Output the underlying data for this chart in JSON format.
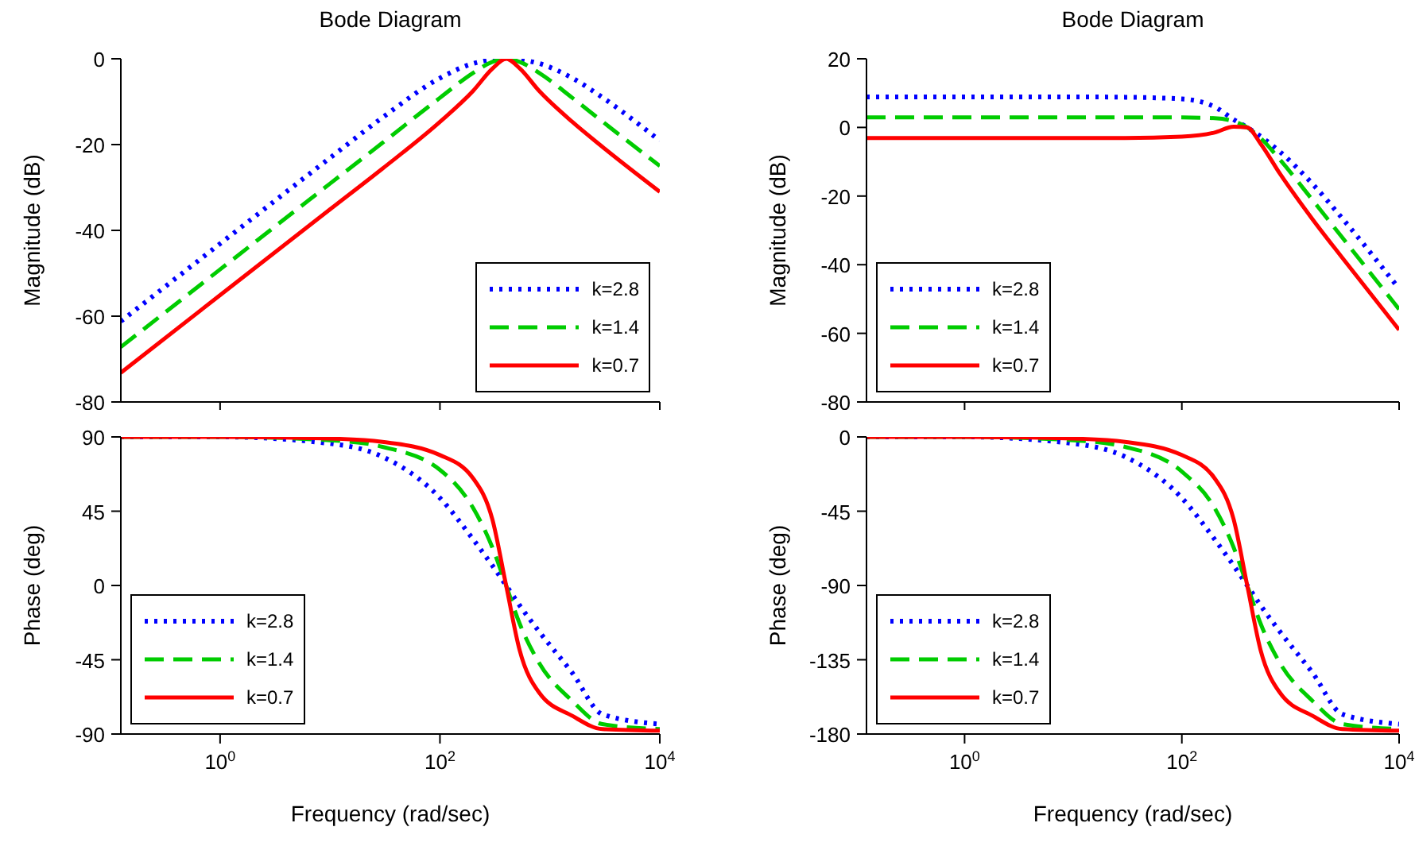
{
  "chart_data": [
    {
      "type": "line",
      "title": "Bode Diagram",
      "ylabel": "Magnitude (dB)",
      "log": "x",
      "tick_labels": "y",
      "legend": "bottom right",
      "marker": "none",
      "grid": false,
      "xlim": [
        0.125,
        10000
      ],
      "xticks": [
        {
          "value": 1,
          "label": null
        },
        {
          "value": 100,
          "label": null
        },
        {
          "value": 10000,
          "label": null
        }
      ],
      "ylim": [
        -80,
        0
      ],
      "yticks": [
        -80,
        -60,
        -40,
        -20,
        0
      ],
      "series": [
        {
          "name": "k=2.8",
          "color": "#0000ff",
          "line_style": "dotted",
          "x": [
            0.125,
            1,
            10,
            30,
            100,
            200,
            300,
            400,
            530,
            800,
            1600,
            3000,
            10000
          ],
          "values": [
            -61.2,
            -43.1,
            -23.1,
            -13.7,
            -4.5,
            -1.1,
            -0.2,
            0,
            -0.2,
            -1.1,
            -4.5,
            -9,
            -19.1
          ]
        },
        {
          "name": "k=1.4",
          "color": "#00cc00",
          "line_style": "dashed",
          "x": [
            0.125,
            1,
            10,
            30,
            100,
            200,
            300,
            400,
            530,
            800,
            1600,
            3000,
            10000
          ],
          "values": [
            -67.2,
            -49.1,
            -29.1,
            -19.6,
            -9.1,
            -3.3,
            -0.7,
            0,
            -0.7,
            -3.3,
            -9.1,
            -14.6,
            -25
          ]
        },
        {
          "name": "k=0.7",
          "color": "#ff0000",
          "line_style": "solid",
          "x": [
            0.125,
            1,
            10,
            30,
            100,
            200,
            300,
            400,
            530,
            800,
            1600,
            3000,
            10000
          ],
          "values": [
            -73.2,
            -55.1,
            -35.1,
            -25.6,
            -14.7,
            -7.5,
            -2.3,
            0,
            -2.2,
            -7.5,
            -14.7,
            -20.5,
            -31
          ]
        }
      ]
    },
    {
      "type": "line",
      "title": "Bode Diagram",
      "ylabel": "Magnitude (dB)",
      "log": "x",
      "tick_labels": "y",
      "legend": "bottom left",
      "marker": "none",
      "grid": false,
      "xlim": [
        0.125,
        10000
      ],
      "xticks": [
        {
          "value": 1,
          "label": null
        },
        {
          "value": 100,
          "label": null
        },
        {
          "value": 10000,
          "label": null
        }
      ],
      "ylim": [
        -80,
        20
      ],
      "yticks": [
        -80,
        -60,
        -40,
        -20,
        0,
        20
      ],
      "series": [
        {
          "name": "k=2.8",
          "color": "#0000ff",
          "line_style": "dotted",
          "x": [
            0.125,
            1,
            10,
            30,
            100,
            200,
            300,
            400,
            530,
            800,
            1600,
            3000,
            10000
          ],
          "values": [
            8.9,
            8.9,
            8.9,
            8.8,
            8.3,
            6,
            2.3,
            0,
            -2.6,
            -7.1,
            -16.5,
            -26.5,
            -47
          ]
        },
        {
          "name": "k=1.4",
          "color": "#00cc00",
          "line_style": "dashed",
          "x": [
            0.125,
            1,
            10,
            30,
            100,
            200,
            300,
            400,
            530,
            800,
            1600,
            3000,
            10000
          ],
          "values": [
            2.9,
            2.9,
            2.9,
            2.9,
            2.9,
            2.7,
            1.8,
            0,
            -3.1,
            -9.4,
            -21.2,
            -32.1,
            -53
          ]
        },
        {
          "name": "k=0.7",
          "color": "#ff0000",
          "line_style": "solid",
          "x": [
            0.125,
            1,
            10,
            30,
            100,
            200,
            300,
            400,
            530,
            800,
            1600,
            3000,
            10000
          ],
          "values": [
            -3.1,
            -3.1,
            -3.1,
            -3.1,
            -2.7,
            -1.5,
            0.2,
            0,
            -4.7,
            -13.5,
            -26.8,
            -38,
            -59
          ]
        }
      ]
    },
    {
      "type": "line",
      "xlabel": "Frequency  (rad/sec)",
      "ylabel": "Phase (deg)",
      "log": "x",
      "legend": "bottom left",
      "marker": "none",
      "grid": false,
      "xlim": [
        0.125,
        10000
      ],
      "xticks": [
        {
          "value": 1,
          "label": "10$^{0}$"
        },
        {
          "value": 100,
          "label": "10$^{2}$"
        },
        {
          "value": 10000,
          "label": "10$^{4}$"
        }
      ],
      "ylim": [
        -90,
        90
      ],
      "yticks": [
        -90,
        -45,
        0,
        45,
        90
      ],
      "series": [
        {
          "name": "k=2.8",
          "color": "#0000ff",
          "line_style": "dotted",
          "x": [
            0.125,
            1,
            10,
            30,
            100,
            200,
            300,
            400,
            530,
            800,
            1600,
            3000,
            10000
          ],
          "values": [
            90,
            90,
            86,
            78,
            53,
            28,
            12,
            0,
            -12,
            -28,
            -53,
            -78,
            -84
          ]
        },
        {
          "name": "k=1.4",
          "color": "#00cc00",
          "line_style": "dashed",
          "x": [
            0.125,
            1,
            10,
            30,
            100,
            200,
            300,
            400,
            530,
            800,
            1600,
            3000,
            10000
          ],
          "values": [
            90,
            90,
            88,
            84,
            70,
            47,
            23,
            0,
            -23,
            -47,
            -70,
            -84,
            -87
          ]
        },
        {
          "name": "k=0.7",
          "color": "#ff0000",
          "line_style": "solid",
          "x": [
            0.125,
            1,
            10,
            30,
            100,
            200,
            300,
            400,
            530,
            800,
            1600,
            3000,
            10000
          ],
          "values": [
            90,
            90,
            89,
            87,
            79,
            65,
            40,
            0,
            -39,
            -65,
            -79,
            -87,
            -88
          ]
        }
      ]
    },
    {
      "type": "line",
      "xlabel": "Frequency  (rad/sec)",
      "ylabel": "Phase (deg)",
      "log": "x",
      "legend": "bottom left",
      "marker": "none",
      "grid": false,
      "xlim": [
        0.125,
        10000
      ],
      "xticks": [
        {
          "value": 1,
          "label": "10$^{0}$"
        },
        {
          "value": 100,
          "label": "10$^{2}$"
        },
        {
          "value": 10000,
          "label": "10$^{4}$"
        }
      ],
      "ylim": [
        -180,
        0
      ],
      "yticks": [
        -180,
        -135,
        -90,
        -45,
        0
      ],
      "series": [
        {
          "name": "k=2.8",
          "color": "#0000ff",
          "line_style": "dotted",
          "x": [
            0.125,
            1,
            10,
            30,
            100,
            200,
            300,
            400,
            530,
            800,
            1600,
            3000,
            10000
          ],
          "values": [
            0,
            0,
            -4,
            -12,
            -37,
            -62,
            -78,
            -90,
            -102,
            -118,
            -143,
            -168,
            -174
          ]
        },
        {
          "name": "k=1.4",
          "color": "#00cc00",
          "line_style": "dashed",
          "x": [
            0.125,
            1,
            10,
            30,
            100,
            200,
            300,
            400,
            530,
            800,
            1600,
            3000,
            10000
          ],
          "values": [
            0,
            0,
            -2,
            -6,
            -21,
            -43,
            -67,
            -90,
            -113,
            -137,
            -160,
            -174,
            -177
          ]
        },
        {
          "name": "k=0.7",
          "color": "#ff0000",
          "line_style": "solid",
          "x": [
            0.125,
            1,
            10,
            30,
            100,
            200,
            300,
            400,
            530,
            800,
            1600,
            3000,
            10000
          ],
          "values": [
            0,
            0,
            -1,
            -3,
            -11,
            -25,
            -50,
            -90,
            -129,
            -155,
            -169,
            -177,
            -178
          ]
        }
      ]
    }
  ]
}
